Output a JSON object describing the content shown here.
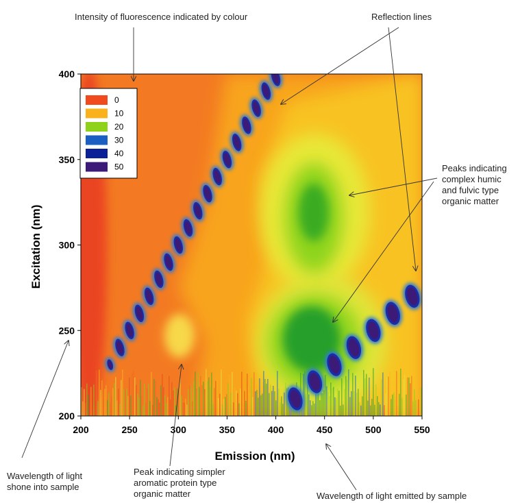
{
  "chart_data": {
    "type": "heatmap",
    "xlabel": "Emission (nm)",
    "ylabel": "Excitation (nm)",
    "xlim": [
      200,
      550
    ],
    "ylim": [
      200,
      400
    ],
    "x_ticks": [
      200,
      250,
      300,
      350,
      400,
      450,
      500,
      550
    ],
    "y_ticks": [
      200,
      250,
      300,
      350,
      400
    ],
    "legend_placement": "top-left",
    "legend": [
      {
        "label": "0",
        "color": "#f04a1e"
      },
      {
        "label": "10",
        "color": "#f9b21c"
      },
      {
        "label": "20",
        "color": "#8fd21c"
      },
      {
        "label": "30",
        "color": "#1b5fc3"
      },
      {
        "label": "40",
        "color": "#0b1f96"
      },
      {
        "label": "50",
        "color": "#3b1a78"
      }
    ],
    "peaks": [
      {
        "emission": 450,
        "excitation": 330,
        "intensity": 20
      },
      {
        "emission": 455,
        "excitation": 250,
        "intensity": 25
      },
      {
        "emission": 305,
        "excitation": 250,
        "intensity": 10
      }
    ],
    "reflection_line_1": [
      {
        "emission": 230,
        "excitation": 230
      },
      {
        "emission": 240,
        "excitation": 240
      },
      {
        "emission": 250,
        "excitation": 250
      },
      {
        "emission": 260,
        "excitation": 260
      },
      {
        "emission": 270,
        "excitation": 270
      },
      {
        "emission": 280,
        "excitation": 280
      },
      {
        "emission": 290,
        "excitation": 290
      },
      {
        "emission": 300,
        "excitation": 300
      },
      {
        "emission": 310,
        "excitation": 310
      },
      {
        "emission": 320,
        "excitation": 320
      },
      {
        "emission": 330,
        "excitation": 330
      },
      {
        "emission": 340,
        "excitation": 340
      },
      {
        "emission": 350,
        "excitation": 350
      },
      {
        "emission": 360,
        "excitation": 360
      },
      {
        "emission": 370,
        "excitation": 370
      },
      {
        "emission": 380,
        "excitation": 380
      },
      {
        "emission": 390,
        "excitation": 390
      },
      {
        "emission": 400,
        "excitation": 398
      }
    ],
    "reflection_line_2": [
      {
        "emission": 420,
        "excitation": 210
      },
      {
        "emission": 440,
        "excitation": 220
      },
      {
        "emission": 460,
        "excitation": 230
      },
      {
        "emission": 480,
        "excitation": 240
      },
      {
        "emission": 500,
        "excitation": 250
      },
      {
        "emission": 520,
        "excitation": 260
      },
      {
        "emission": 540,
        "excitation": 270
      }
    ]
  },
  "annotations": {
    "intensity": "Intensity of fluorescence indicated by colour",
    "reflection": "Reflection lines",
    "peaks_humic_1": "Peaks indicating",
    "peaks_humic_2": "complex humic",
    "peaks_humic_3": "and fulvic type",
    "peaks_humic_4": "organic matter",
    "excitation_1": "Wavelength of light",
    "excitation_2": "shone into sample",
    "protein_1": "Peak indicating simpler",
    "protein_2": "aromatic protein type",
    "protein_3": "organic matter",
    "emitted": "Wavelength of light emitted by sample"
  }
}
